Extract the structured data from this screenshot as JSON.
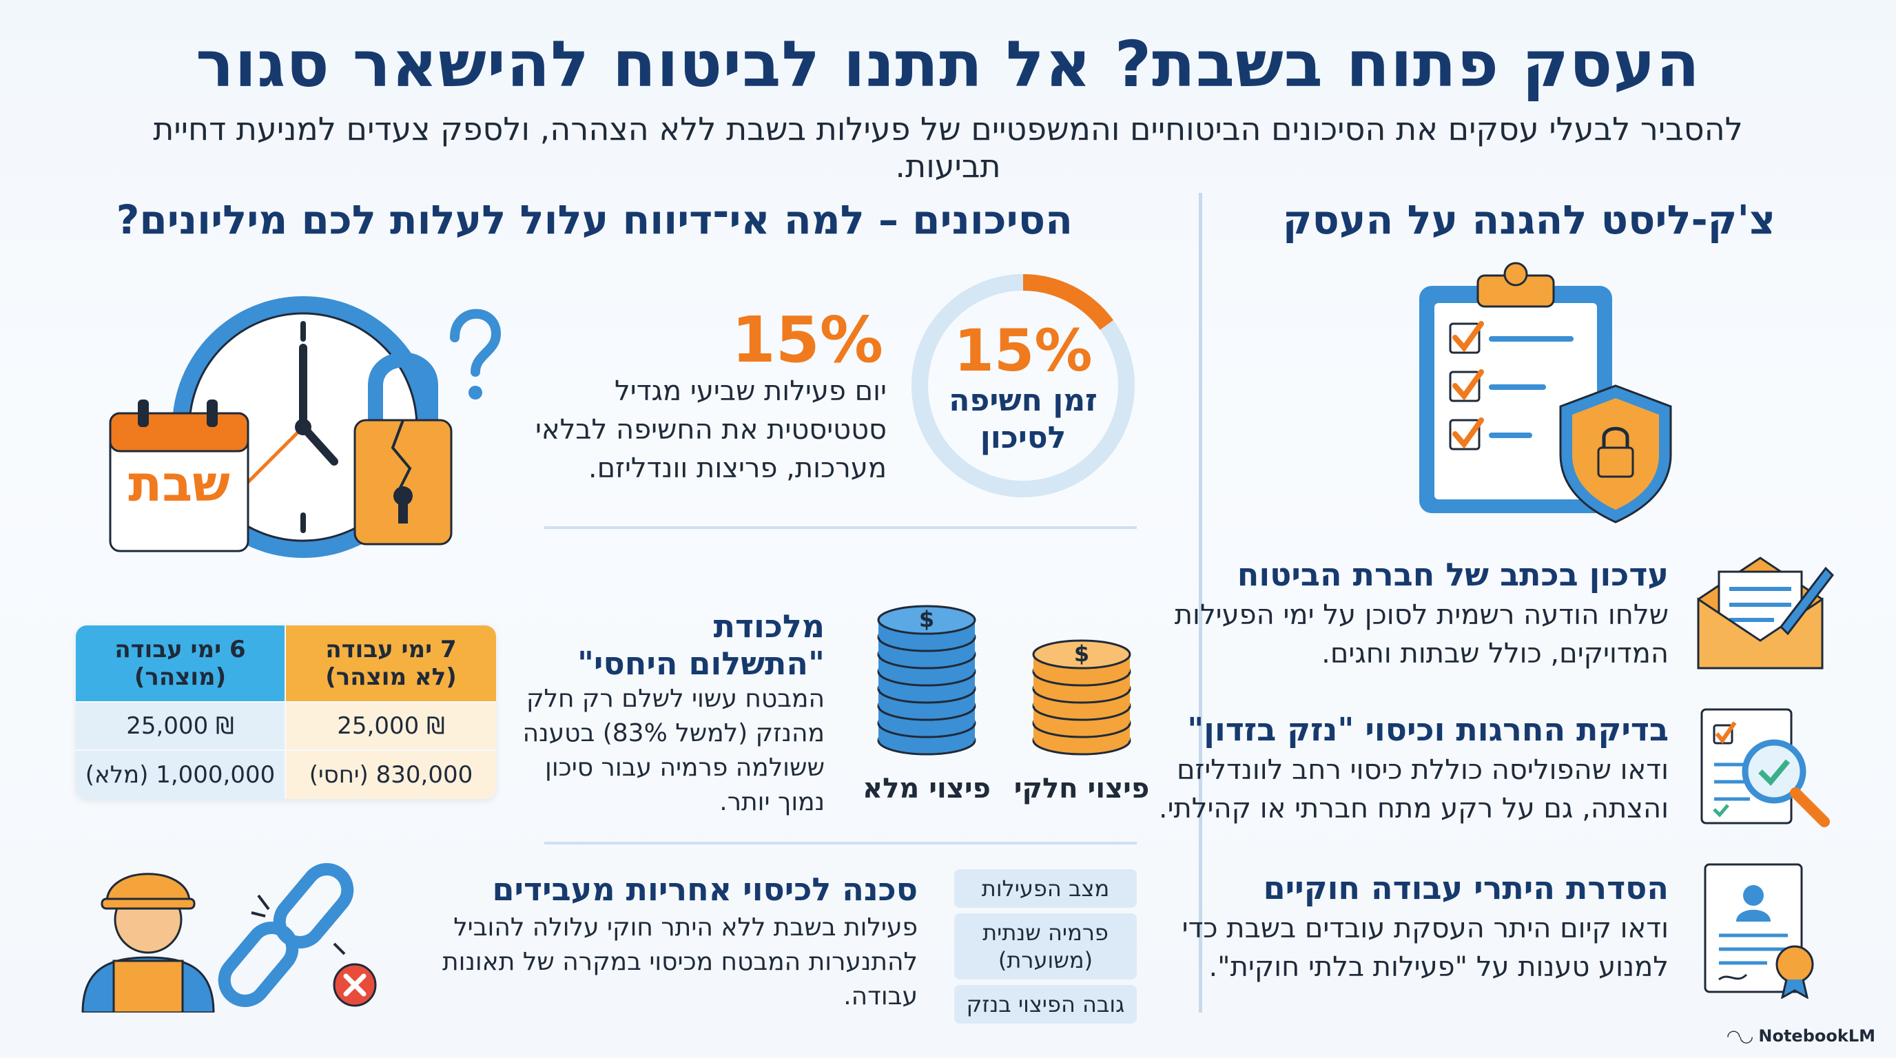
{
  "header": {
    "title": "העסק פתוח בשבת? אל תתנו לביטוח להישאר סגור",
    "subtitle": "להסביר לבעלי עסקים את הסיכונים הביטוחיים והמשפטיים של פעילות בשבת ללא הצהרה, ולספק צעדים למניעת דחיית תביעות."
  },
  "risks": {
    "heading": "הסיכונים – למה אי־דיווח עלול לעלות לכם מיליונים?",
    "calendar_label": "שבת",
    "exposure": {
      "ring_value": "15%",
      "ring_fraction": 0.15,
      "ring_label_line1": "זמן חשיפה",
      "ring_label_line2": "לסיכון",
      "pct": "15%",
      "desc_line1": "יום פעילות שביעי מגדיל",
      "desc_line2": "סטטיסטית את החשיפה לבלאי",
      "desc_line3": "מערכות, פריצות וונדליזם."
    },
    "relative_payment": {
      "title_line1": "מלכודת",
      "title_line2": "\"התשלום היחסי\"",
      "desc_line1": "המבטח עשוי לשלם רק חלק",
      "desc_line2": "מהנזק (למשל 83%) בטענה",
      "desc_line3": "ששולמה פרמיה עבור סיכון",
      "desc_line4": "נמוך יותר.",
      "coins_full_label": "פיצוי מלא",
      "coins_partial_label": "פיצוי חלקי"
    },
    "table": {
      "col_declared_line1": "6 ימי עבודה",
      "col_declared_line2": "(מוצהר)",
      "col_undeclared_line1": "7 ימי עבודה",
      "col_undeclared_line2": "(לא מוצהר)",
      "row1_declared": "₪ 25,000",
      "row1_undeclared": "₪ 25,000",
      "row2_declared": "1,000,000 (מלא)",
      "row2_undeclared": "830,000 (יחסי)"
    },
    "employers": {
      "title": "סכנה לכיסוי אחריות מעבידים",
      "desc_line1": "פעילות בשבת ללא היתר חוקי עלולה להוביל",
      "desc_line2": "להתנערות המבטח מכיסוי במקרה של תאונות",
      "desc_line3": "עבודה.",
      "chips": [
        "מצב הפעילות",
        "פרמיה שנתית (משוערת)",
        "גובה הפיצוי בנזק"
      ]
    }
  },
  "checklist": {
    "heading": "צ'ק-ליסט להגנה על העסק",
    "items": [
      {
        "title": "עדכון בכתב של חברת הביטוח",
        "line1": "שלחו הודעה רשמית לסוכן על ימי הפעילות",
        "line2": "המדויקים, כולל שבתות וחגים."
      },
      {
        "title": "בדיקת החרגות וכיסוי \"נזק בזדון\"",
        "line1": "ודאו שהפוליסה כוללת כיסוי רחב לוונדליזם",
        "line2": "והצתה, גם על רקע מתח חברתי או קהילתי."
      },
      {
        "title": "הסדרת היתרי עבודה חוקיים",
        "line1": "ודאו קיום היתר העסקת עובדים בשבת כדי",
        "line2": "למנוע טענות על \"פעילות בלתי חוקית\"."
      }
    ]
  },
  "brand": {
    "name": "NotebookLM"
  },
  "colors": {
    "navy": "#173a6e",
    "orange": "#f07a1e",
    "blue": "#3b8fd4",
    "light_blue": "#dceaf7"
  }
}
